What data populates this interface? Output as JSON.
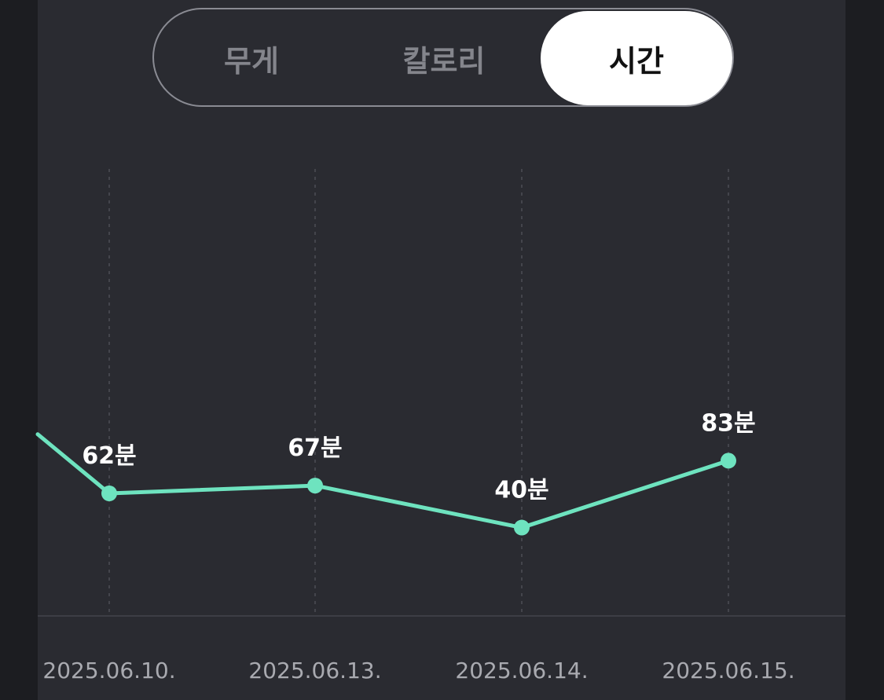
{
  "tabs": [
    {
      "label": "무게",
      "active": false
    },
    {
      "label": "칼로리",
      "active": false
    },
    {
      "label": "시간",
      "active": true
    }
  ],
  "colors": {
    "accent": "#6ee3bf",
    "background": "#2a2b31",
    "page_edge": "#1c1d21",
    "tab_active_bg": "#ffffff",
    "tab_inactive_text": "#84858c",
    "gridline": "#44454c",
    "axis_text": "#a9aab0"
  },
  "chart_data": {
    "type": "line",
    "unit": "분",
    "categories": [
      "2025.06.10.",
      "2025.06.13.",
      "2025.06.14.",
      "2025.06.15."
    ],
    "series": [
      {
        "values": [
          62,
          67,
          40,
          83
        ],
        "labels": [
          "62분",
          "67분",
          "40분",
          "83분"
        ]
      }
    ],
    "previous_point": {
      "value": 100,
      "label": ""
    },
    "ylim": [
      20,
      110
    ],
    "grid": "vertical dotted lines at each date",
    "legend": "none"
  }
}
